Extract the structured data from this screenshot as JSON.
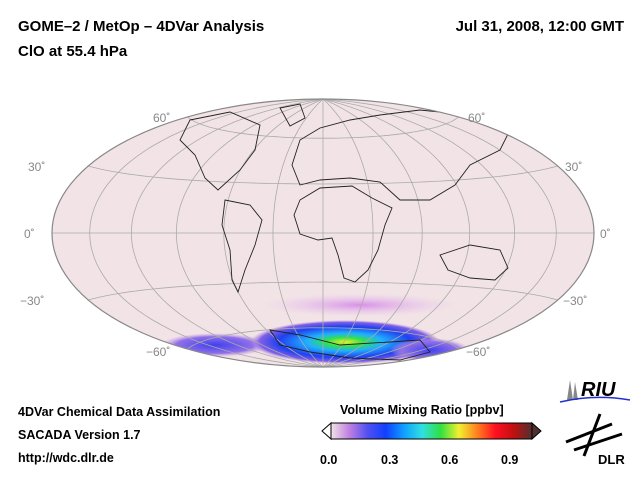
{
  "header": {
    "title_line1": "GOME–2 / MetOp – 4DVar Analysis",
    "title_line2": "ClO at 55.4 hPa",
    "date": "Jul 31, 2008, 12:00 GMT"
  },
  "map": {
    "projection": "Hammer",
    "graticule_step_deg": 30,
    "lat_labels": [
      "60˚",
      "30˚",
      "0˚",
      "−30˚",
      "−60˚"
    ],
    "background_color": "#f2e4e6"
  },
  "footer": {
    "line1": "4DVar Chemical Data Assimilation",
    "line2": "SACADA Version 1.7",
    "line3": "http://wdc.dlr.de"
  },
  "colorbar": {
    "title": "Volume Mixing Ratio [ppbv]",
    "ticks": [
      "0.0",
      "0.3",
      "0.6",
      "0.9"
    ],
    "range": [
      0,
      1.0
    ],
    "colors": [
      "#f2e4e6",
      "#c080e0",
      "#5050f0",
      "#1040ff",
      "#10a0ff",
      "#30e0e0",
      "#30e040",
      "#f0f030",
      "#ff8020",
      "#ff1020",
      "#c01010",
      "#503030"
    ]
  },
  "logos": {
    "riu": "RIU",
    "dlr": "DLR"
  }
}
